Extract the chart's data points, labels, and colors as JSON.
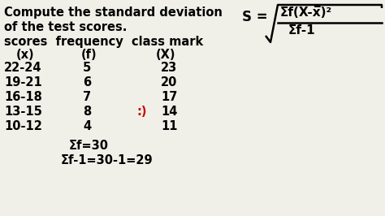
{
  "bg_color": "#f0f0e8",
  "text_color": "#000000",
  "smiley_color": "#cc0000",
  "title_line1": "Compute the standard deviation",
  "title_line2": "of the test scores.",
  "col_header": "scores  frequency  class mark",
  "rows": [
    [
      "22-24",
      "5",
      "23"
    ],
    [
      "19-21",
      "6",
      "20"
    ],
    [
      "16-18",
      "7",
      "17"
    ],
    [
      "13-15",
      "8",
      "14"
    ],
    [
      "10-12",
      "4",
      "11"
    ]
  ],
  "smiley_row": 3,
  "sum_line1": "Σf=30",
  "sum_line2": "Σf-1=30-1=29",
  "font_size_title": 10.5,
  "font_size_body": 10.5,
  "font_size_formula": 11,
  "formula_S": "S = ",
  "formula_num": "Σf(X-x̅)²",
  "formula_den": "Σf-1"
}
